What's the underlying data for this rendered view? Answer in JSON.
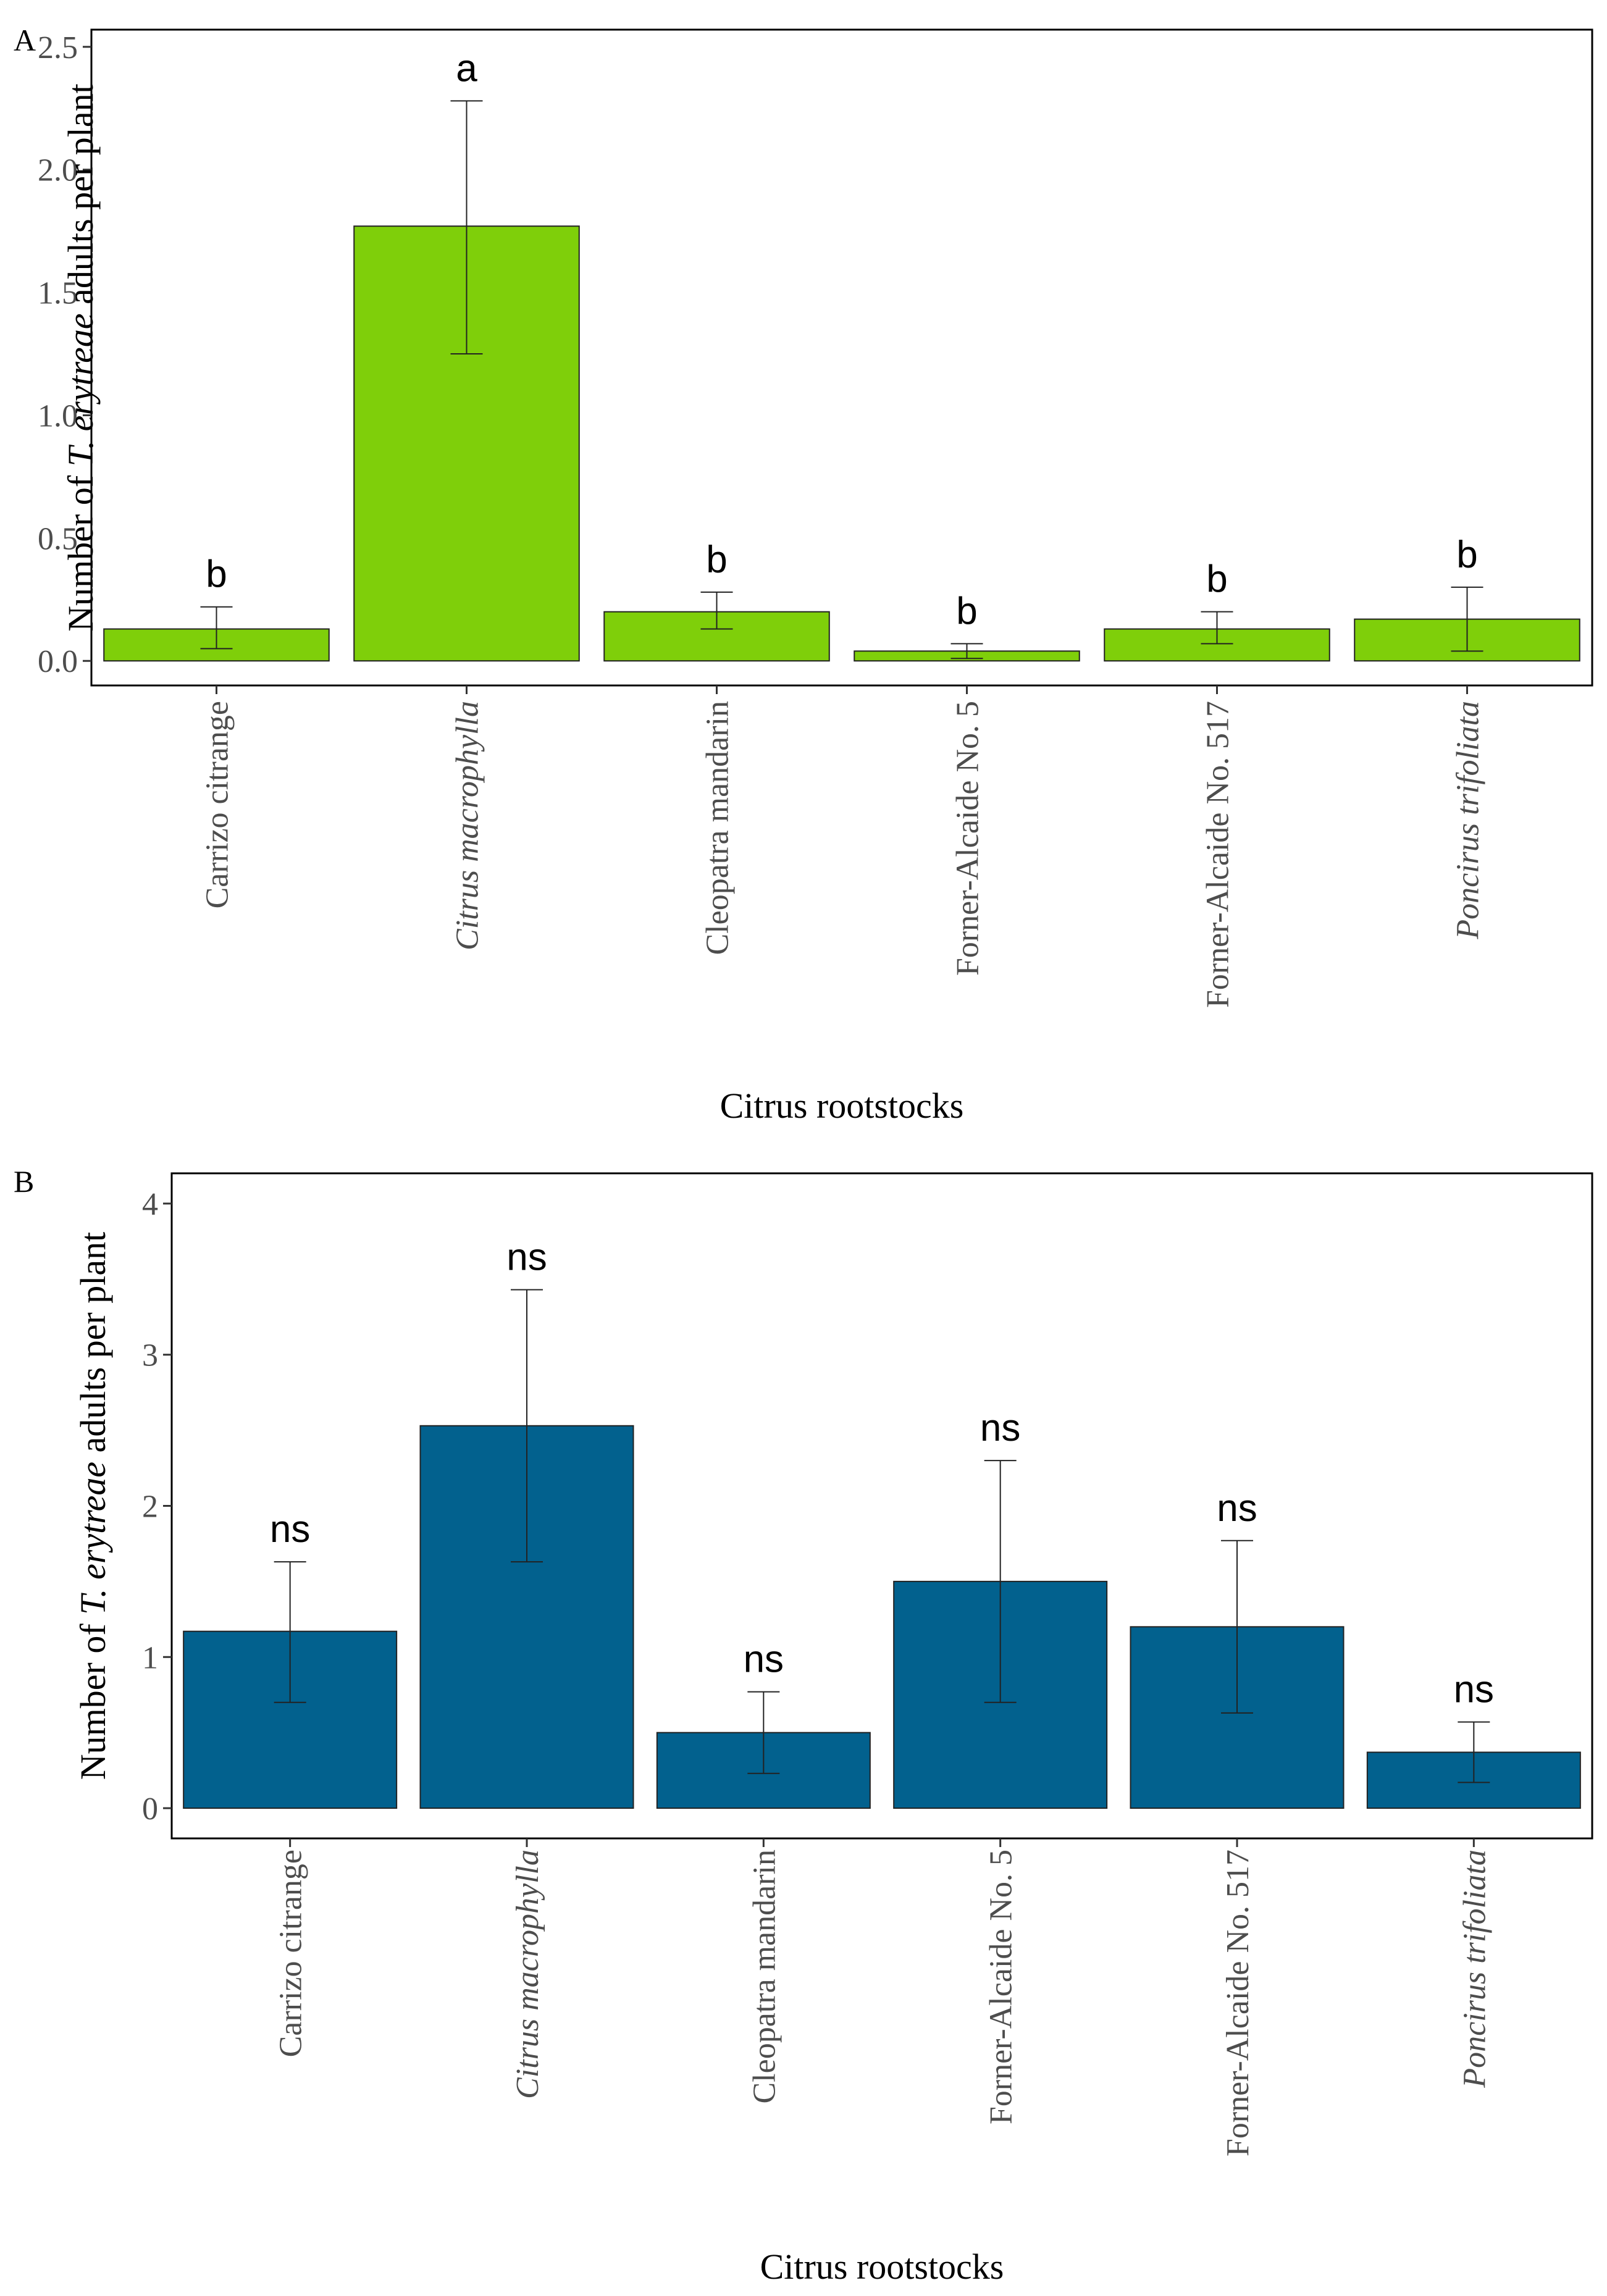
{
  "chart_data": [
    {
      "panel_label": "A",
      "type": "bar",
      "categories": [
        {
          "label": "Carrizo citrange",
          "italic": false
        },
        {
          "label": "Citrus macrophylla",
          "italic": true
        },
        {
          "label": "Cleopatra mandarin",
          "italic": false
        },
        {
          "label": "Forner-Alcaide No. 5",
          "italic": false
        },
        {
          "label": "Forner-Alcaide No. 517",
          "italic": false
        },
        {
          "label": "Poncirus trifoliata",
          "italic": true
        }
      ],
      "values": [
        0.13,
        1.77,
        0.2,
        0.04,
        0.13,
        0.17
      ],
      "error_low": [
        0.05,
        1.25,
        0.13,
        0.01,
        0.07,
        0.04
      ],
      "error_high": [
        0.22,
        2.28,
        0.28,
        0.07,
        0.2,
        0.3
      ],
      "significance": [
        "b",
        "a",
        "b",
        "b",
        "b",
        "b"
      ],
      "bar_color": "#7fcf0a",
      "xlabel": "Citrus rootstocks",
      "ylabel_parts": [
        {
          "text": "Number of ",
          "italic": false
        },
        {
          "text": "T. erytreae",
          "italic": true
        },
        {
          "text": " adults per plant",
          "italic": false
        }
      ],
      "ylim": [
        -0.1,
        2.57
      ],
      "yticks": [
        0.0,
        0.5,
        1.0,
        1.5,
        2.0,
        2.5
      ],
      "ytick_labels": [
        "0.0",
        "0.5",
        "1.0",
        "1.5",
        "2.0",
        "2.5"
      ]
    },
    {
      "panel_label": "B",
      "type": "bar",
      "categories": [
        {
          "label": "Carrizo citrange",
          "italic": false
        },
        {
          "label": "Citrus macrophylla",
          "italic": true
        },
        {
          "label": "Cleopatra mandarin",
          "italic": false
        },
        {
          "label": "Forner-Alcaide No. 5",
          "italic": false
        },
        {
          "label": "Forner-Alcaide No. 517",
          "italic": false
        },
        {
          "label": "Poncirus trifoliata",
          "italic": true
        }
      ],
      "values": [
        1.17,
        2.53,
        0.5,
        1.5,
        1.2,
        0.37
      ],
      "error_low": [
        0.7,
        1.63,
        0.23,
        0.7,
        0.63,
        0.17
      ],
      "error_high": [
        1.63,
        3.43,
        0.77,
        2.3,
        1.77,
        0.57
      ],
      "significance": [
        "ns",
        "ns",
        "ns",
        "ns",
        "ns",
        "ns"
      ],
      "bar_color": "#02618e",
      "xlabel": "Citrus rootstocks",
      "ylabel_parts": [
        {
          "text": "Number of ",
          "italic": false
        },
        {
          "text": "T. erytreae",
          "italic": true
        },
        {
          "text": "  adults per plant",
          "italic": false
        }
      ],
      "ylim": [
        -0.2,
        4.2
      ],
      "yticks": [
        0,
        1,
        2,
        3,
        4
      ],
      "ytick_labels": [
        "0",
        "1",
        "2",
        "3",
        "4"
      ]
    }
  ]
}
